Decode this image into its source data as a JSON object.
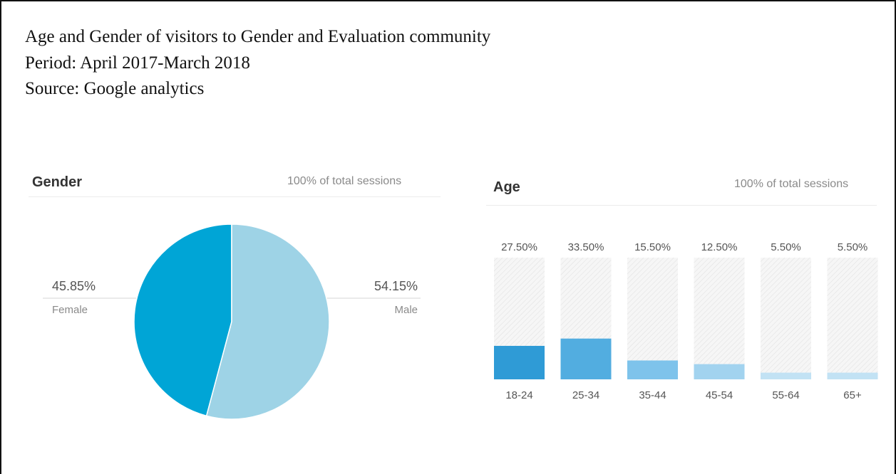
{
  "caption": {
    "line1": "Age and Gender of visitors to Gender and Evaluation community",
    "line2": "Period:  April 2017-March 2018",
    "line3": "Source: Google analytics"
  },
  "gender_panel": {
    "title": "Gender",
    "subtitle": "100% of total sessions"
  },
  "age_panel": {
    "title": "Age",
    "subtitle": "100% of total sessions"
  },
  "pie_labels": {
    "female_value": "45.85%",
    "female_name": "Female",
    "male_value": "54.15%",
    "male_name": "Male"
  },
  "colors": {
    "female": "#00a5d6",
    "male": "#9ed3e6",
    "bar_18_24": "#2f9bd6",
    "bar_25_34": "#52ade0",
    "bar_35_44": "#7ec3eb",
    "bar_45_54": "#a2d3ef",
    "bar_55_64": "#c2e2f4",
    "bar_65": "#c2e2f4",
    "hatch": "#e2e2e2"
  },
  "chart_data": [
    {
      "type": "pie",
      "title": "Gender",
      "categories": [
        "Female",
        "Male"
      ],
      "values": [
        45.85,
        54.15
      ]
    },
    {
      "type": "bar",
      "title": "Age",
      "categories": [
        "18-24",
        "25-34",
        "35-44",
        "45-54",
        "55-64",
        "65+"
      ],
      "values": [
        27.5,
        33.5,
        15.5,
        12.5,
        5.5,
        5.5
      ],
      "value_labels": [
        "27.50%",
        "33.50%",
        "15.50%",
        "12.50%",
        "5.50%",
        "5.50%"
      ],
      "ylim": [
        0,
        100
      ]
    }
  ]
}
